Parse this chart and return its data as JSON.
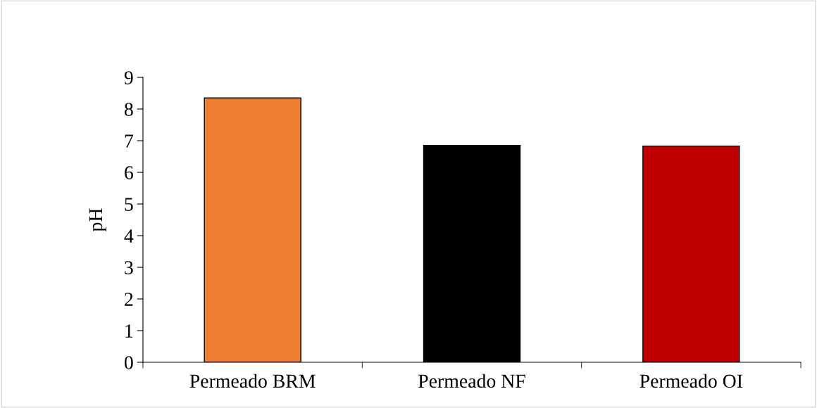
{
  "chart_data": {
    "type": "bar",
    "ylabel": "pH",
    "categories": [
      "Permeado BRM",
      "Permeado NF",
      "Permeado OI"
    ],
    "values": [
      8.35,
      6.85,
      6.83
    ],
    "colors": [
      "#ed7d31",
      "#000000",
      "#c00000"
    ],
    "ylim": [
      0,
      9
    ],
    "yticks": [
      0,
      1,
      2,
      3,
      4,
      5,
      6,
      7,
      8,
      9
    ],
    "grid": false,
    "legend": false
  }
}
